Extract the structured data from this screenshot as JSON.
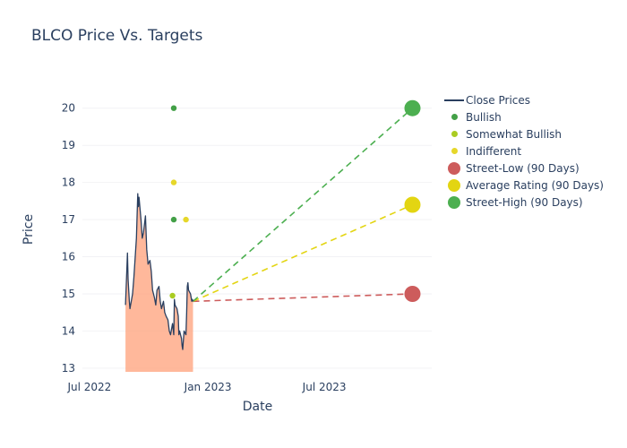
{
  "chart_data": {
    "type": "line",
    "title": "BLCO Price Vs. Targets",
    "xlabel": "Date",
    "ylabel": "Price",
    "ylim": [
      12.9,
      20.5
    ],
    "xlim": [
      "2022-06-20",
      "2023-12-15"
    ],
    "grid": false,
    "legend_position": "right",
    "y_ticks": [
      13,
      14,
      15,
      16,
      17,
      18,
      19,
      20
    ],
    "x_ticks": [
      {
        "label": "Jul 2022",
        "date": "2022-07-01"
      },
      {
        "label": "Jan 2023",
        "date": "2023-01-01"
      },
      {
        "label": "Jul 2023",
        "date": "2023-07-01"
      }
    ],
    "close_prices": {
      "name": "Close Prices",
      "color": "#2a3f5f",
      "fill_color": "rgba(255,160,122,0.75)",
      "x": [
        "2022-08-26",
        "2022-08-29",
        "2022-08-30",
        "2022-09-01",
        "2022-09-02",
        "2022-09-06",
        "2022-09-08",
        "2022-09-12",
        "2022-09-14",
        "2022-09-15",
        "2022-09-16",
        "2022-09-19",
        "2022-09-21",
        "2022-09-23",
        "2022-09-26",
        "2022-09-28",
        "2022-09-30",
        "2022-10-03",
        "2022-10-05",
        "2022-10-07",
        "2022-10-10",
        "2022-10-12",
        "2022-10-14",
        "2022-10-17",
        "2022-10-19",
        "2022-10-21",
        "2022-10-24",
        "2022-10-26",
        "2022-10-28",
        "2022-10-31",
        "2022-11-02",
        "2022-11-04",
        "2022-11-07",
        "2022-11-09",
        "2022-11-10",
        "2022-11-11",
        "2022-11-14",
        "2022-11-15",
        "2022-11-16",
        "2022-11-17",
        "2022-11-18",
        "2022-11-21",
        "2022-11-22",
        "2022-11-23",
        "2022-11-25",
        "2022-11-28",
        "2022-11-29",
        "2022-11-30",
        "2022-12-01",
        "2022-12-02",
        "2022-12-05",
        "2022-12-06",
        "2022-12-07",
        "2022-12-08",
        "2022-12-09"
      ],
      "y": [
        14.7,
        16.1,
        15.4,
        14.8,
        14.6,
        15.0,
        15.45,
        16.5,
        17.7,
        17.35,
        17.6,
        17.0,
        16.5,
        16.65,
        17.1,
        16.2,
        15.8,
        15.9,
        15.6,
        15.1,
        14.9,
        14.7,
        15.1,
        15.2,
        14.8,
        14.6,
        14.8,
        14.5,
        14.4,
        14.3,
        14.0,
        13.9,
        14.2,
        13.9,
        14.85,
        14.7,
        14.6,
        14.5,
        14.4,
        13.9,
        14.0,
        13.8,
        13.6,
        13.5,
        14.0,
        13.9,
        14.5,
        15.2,
        15.3,
        15.1,
        15.0,
        14.9,
        14.8,
        14.85,
        14.8
      ]
    },
    "ratings": [
      {
        "name": "Bullish",
        "color": "#43a047",
        "points": [
          {
            "x": "2022-11-09",
            "y": 20
          },
          {
            "x": "2022-11-09",
            "y": 17
          }
        ]
      },
      {
        "name": "Somewhat Bullish",
        "color": "#aacc22",
        "points": [
          {
            "x": "2022-11-07",
            "y": 14.95
          }
        ]
      },
      {
        "name": "Indifferent",
        "color": "#e6d72a",
        "points": [
          {
            "x": "2022-11-09",
            "y": 18
          },
          {
            "x": "2022-11-28",
            "y": 17
          }
        ]
      }
    ],
    "targets": [
      {
        "name": "Street-Low (90 Days)",
        "color": "#cd5c5c",
        "value": 15,
        "date": "2023-11-15"
      },
      {
        "name": "Average Rating (90 Days)",
        "color": "#e3d512",
        "value": 17.4,
        "date": "2023-11-15"
      },
      {
        "name": "Street-High (90 Days)",
        "color": "#4caf50",
        "value": 20,
        "date": "2023-11-15"
      }
    ]
  },
  "legend": {
    "items": [
      {
        "label": "Close Prices",
        "symbol": "line",
        "color": "#2a3f5f"
      },
      {
        "label": "Bullish",
        "symbol": "dot-small",
        "color": "#43a047"
      },
      {
        "label": "Somewhat Bullish",
        "symbol": "dot-small",
        "color": "#aacc22"
      },
      {
        "label": "Indifferent",
        "symbol": "dot-small",
        "color": "#e6d72a"
      },
      {
        "label": "Street-Low (90 Days)",
        "symbol": "dot-large",
        "color": "#cd5c5c"
      },
      {
        "label": "Average Rating (90 Days)",
        "symbol": "dot-large",
        "color": "#e3d512"
      },
      {
        "label": "Street-High (90 Days)",
        "symbol": "dot-large",
        "color": "#4caf50"
      }
    ]
  }
}
